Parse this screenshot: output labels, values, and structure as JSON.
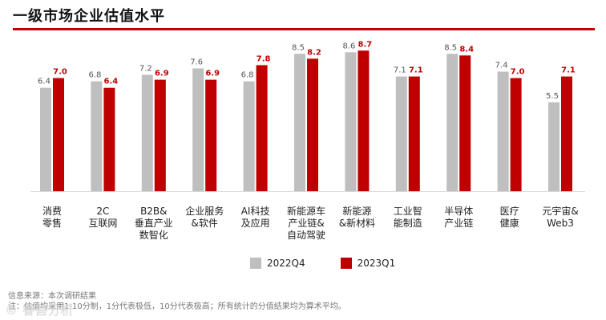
{
  "header": {
    "title": "一级市场企业估值水平"
  },
  "chart_data": {
    "type": "bar",
    "categories": [
      [
        "消费",
        "零售"
      ],
      [
        "2C",
        "互联网"
      ],
      [
        "B2B&",
        "垂直产业",
        "数智化"
      ],
      [
        "企业服务",
        "&软件"
      ],
      [
        "AI科技",
        "及应用"
      ],
      [
        "新能源车",
        "产业链&",
        "自动驾驶"
      ],
      [
        "新能源",
        "&新材料"
      ],
      [
        "工业智",
        "能制造"
      ],
      [
        "半导体",
        "产业链"
      ],
      [
        "医疗",
        "健康"
      ],
      [
        "元宇宙&",
        "Web3"
      ]
    ],
    "series": [
      {
        "name": "2022Q4",
        "values": [
          6.4,
          6.8,
          7.2,
          7.6,
          6.8,
          8.5,
          8.6,
          7.1,
          8.5,
          7.4,
          5.5
        ],
        "color": "#bfbfbf",
        "label_color": "#555555"
      },
      {
        "name": "2023Q1",
        "values": [
          7.0,
          6.4,
          6.9,
          6.9,
          7.8,
          8.2,
          8.7,
          7.1,
          8.4,
          7.0,
          7.1
        ],
        "color": "#c00000",
        "label_color": "#c00000"
      }
    ],
    "ylim": [
      0,
      10
    ],
    "legend_position": "bottom"
  },
  "legend": {
    "items": [
      "2022Q4",
      "2023Q1"
    ]
  },
  "footer": {
    "source": "信息来源：本次调研结果",
    "note": "注：估值均采用1-10分制，1分代表极低，10分代表极高；所有统计的分值结果均为算术平均。"
  },
  "watermark": "© 睿兽分析"
}
